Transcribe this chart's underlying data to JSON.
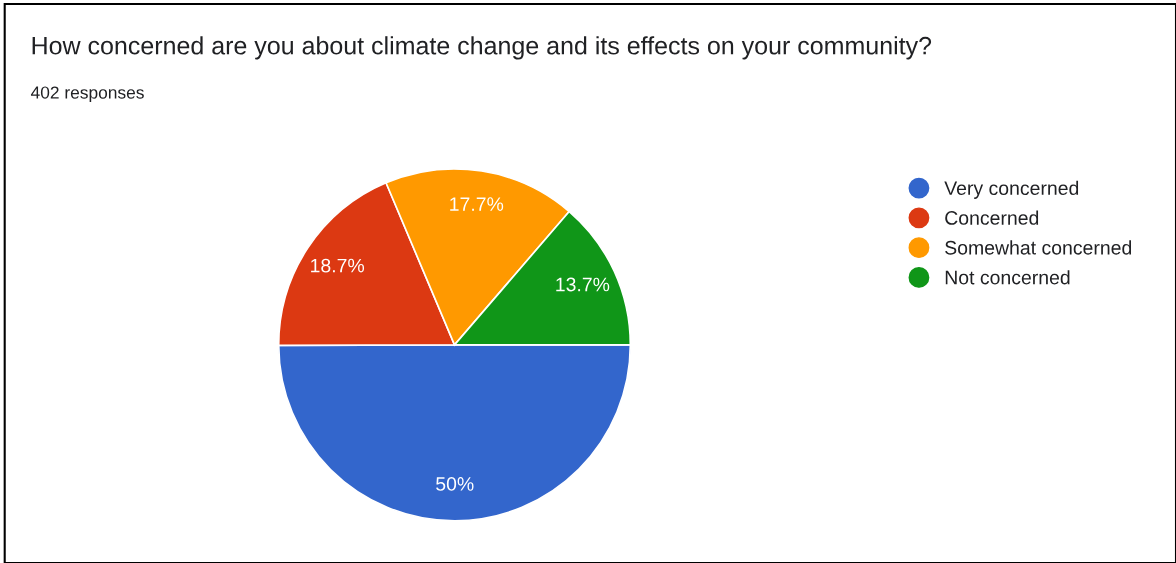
{
  "chart_data": {
    "type": "pie",
    "title": "How concerned are you about climate change and its effects on your community?",
    "subtitle": "402 responses",
    "categories": [
      "Very concerned",
      "Concerned",
      "Somewhat concerned",
      "Not concerned"
    ],
    "values": [
      50,
      18.7,
      17.7,
      13.7
    ],
    "value_labels": [
      "50%",
      "18.7%",
      "17.7%",
      "13.7%"
    ],
    "colors": [
      "#3366cc",
      "#dc3912",
      "#ff9900",
      "#109618"
    ],
    "legend": "right"
  }
}
